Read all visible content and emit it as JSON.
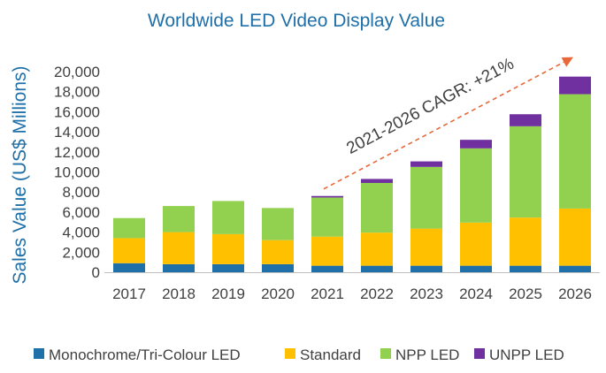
{
  "chart_data": {
    "type": "bar",
    "stacked": true,
    "title": "Worldwide LED Video Display Value",
    "ylabel": "Sales Value (US$ Millions)",
    "xlabel": "",
    "ylim": [
      0,
      20000
    ],
    "yticks": [
      0,
      2000,
      4000,
      6000,
      8000,
      10000,
      12000,
      14000,
      16000,
      18000,
      20000
    ],
    "ytick_labels": [
      "0",
      "2,000",
      "4,000",
      "6,000",
      "8,000",
      "10,000",
      "12,000",
      "14,000",
      "16,000",
      "18,000",
      "20,000"
    ],
    "categories": [
      "2017",
      "2018",
      "2019",
      "2020",
      "2021",
      "2022",
      "2023",
      "2024",
      "2025",
      "2026"
    ],
    "series": [
      {
        "name": "Monochrome/Tri-Colour LED",
        "color": "#1f6fa8",
        "values": [
          900,
          800,
          800,
          800,
          650,
          650,
          650,
          650,
          650,
          650
        ]
      },
      {
        "name": "Standard",
        "color": "#ffc000",
        "values": [
          2500,
          3200,
          3000,
          2400,
          2900,
          3300,
          3700,
          4300,
          4800,
          5700
        ]
      },
      {
        "name": "NPP LED",
        "color": "#92d050",
        "values": [
          2000,
          2600,
          3300,
          3200,
          3900,
          4950,
          6150,
          7400,
          9100,
          11400
        ]
      },
      {
        "name": "UNPP LED",
        "color": "#7030a0",
        "values": [
          0,
          0,
          0,
          0,
          150,
          400,
          550,
          850,
          1200,
          1750
        ]
      }
    ],
    "annotation": {
      "text": "2021-2026 CAGR: +21%",
      "color": "#e8683a"
    },
    "legend_position": "bottom"
  }
}
